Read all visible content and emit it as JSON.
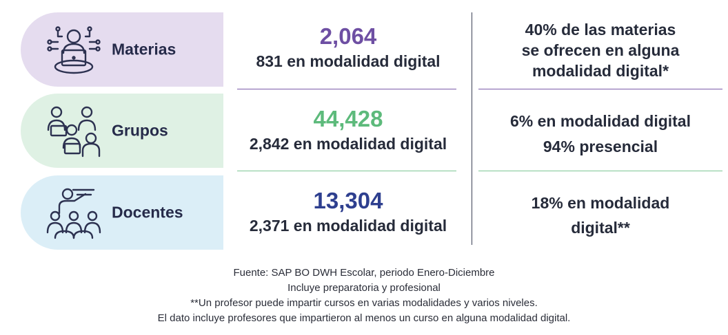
{
  "rows": [
    {
      "label": "Materias",
      "number": "2,064",
      "number_color": "#6e4fa3",
      "bg_color": "#e5dcef",
      "line_color": "#7a5aa8",
      "digital": "831 en modalidad digital",
      "right": [
        "40% de las materias",
        "se ofrecen en alguna",
        "modalidad digital*"
      ],
      "icon": "laptop-user-network-icon"
    },
    {
      "label": "Grupos",
      "number": "44,428",
      "number_color": "#5dba7b",
      "bg_color": "#dff1e4",
      "line_color": "#7cc693",
      "digital": "2,842 en modalidad digital",
      "right": [
        "6% en modalidad digital",
        "94% presencial"
      ],
      "icon": "group-laptops-icon"
    },
    {
      "label": "Docentes",
      "number": "13,304",
      "number_color": "#2e3f8f",
      "bg_color": "#dbeef7",
      "line_color": "#7cc693",
      "digital": "2,371 en modalidad digital",
      "right": [
        "18% en modalidad",
        "digital**"
      ],
      "icon": "teacher-audience-icon"
    }
  ],
  "footnotes": [
    "Fuente: SAP BO DWH Escolar, periodo Enero-Diciembre",
    "Incluye preparatoria y profesional",
    "**Un profesor puede impartir cursos en varias modalidades y varios niveles.",
    "El dato incluye profesores que impartieron al menos un curso en alguna modalidad digital."
  ]
}
